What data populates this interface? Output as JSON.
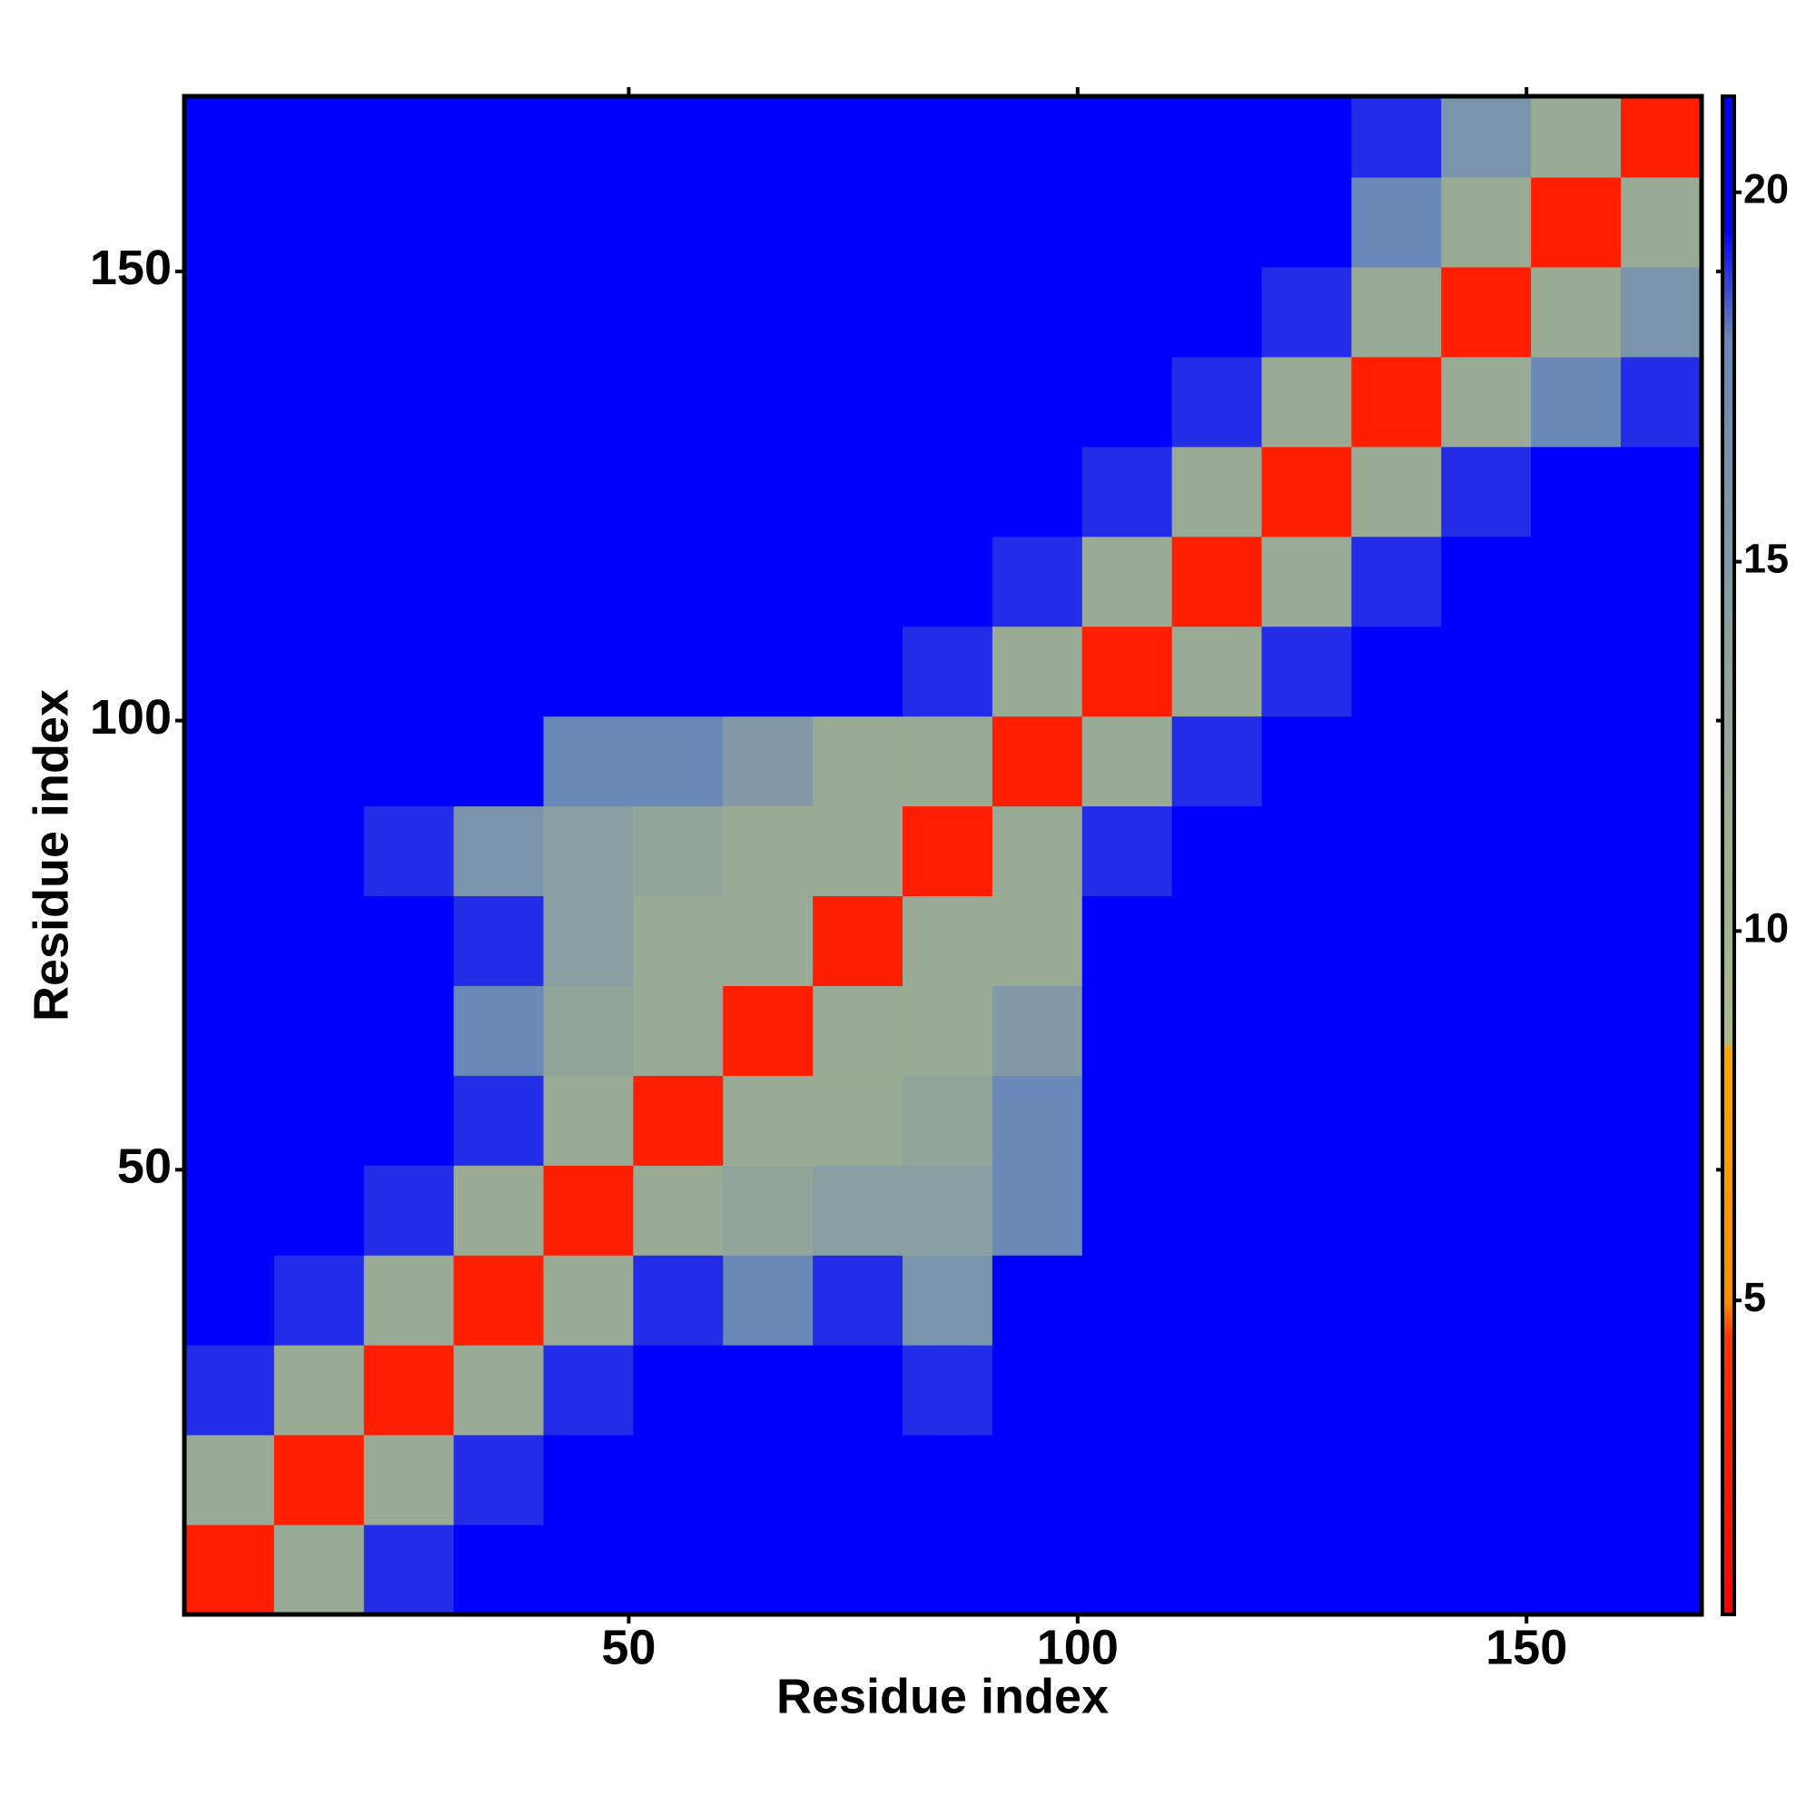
{
  "chart_data": {
    "type": "heatmap",
    "xlabel": "Residue index",
    "ylabel": "Residue index",
    "xlim": [
      0.5,
      169.5
    ],
    "ylim": [
      0.5,
      169.5
    ],
    "xticks": [
      50,
      100,
      150
    ],
    "yticks": [
      50,
      100,
      150
    ],
    "bins": [
      0.5,
      10.5,
      20.5,
      30.5,
      40.5,
      50.5,
      60.5,
      70.5,
      80.5,
      90.5,
      100.5,
      110.5,
      120.5,
      130.5,
      140.5,
      150.5,
      160.5,
      169.5
    ],
    "z": [
      [
        3,
        12,
        19,
        21,
        21,
        21,
        21,
        21,
        21,
        21,
        21,
        21,
        21,
        21,
        21,
        21,
        21
      ],
      [
        12,
        3,
        12,
        19,
        21,
        21,
        21,
        21,
        21,
        21,
        21,
        21,
        21,
        21,
        21,
        21,
        21
      ],
      [
        19,
        12,
        3,
        12,
        19,
        21,
        21,
        21,
        19,
        21,
        21,
        21,
        21,
        21,
        21,
        21,
        21
      ],
      [
        21,
        19,
        12,
        3,
        12,
        19,
        18,
        19,
        16,
        21,
        21,
        21,
        21,
        21,
        21,
        21,
        21
      ],
      [
        21,
        21,
        19,
        12,
        3,
        12,
        13,
        14,
        14,
        18,
        21,
        21,
        21,
        21,
        21,
        21,
        21
      ],
      [
        21,
        21,
        21,
        19,
        12,
        3,
        12,
        12,
        13,
        18,
        21,
        21,
        21,
        21,
        21,
        21,
        21
      ],
      [
        21,
        21,
        21,
        18,
        13,
        12,
        3,
        12,
        12,
        15,
        21,
        21,
        21,
        21,
        21,
        21,
        21
      ],
      [
        21,
        21,
        21,
        19,
        14,
        12,
        12,
        3,
        12,
        12,
        21,
        21,
        21,
        21,
        21,
        21,
        21
      ],
      [
        21,
        21,
        19,
        16,
        14,
        13,
        12,
        12,
        3,
        12,
        19,
        21,
        21,
        21,
        21,
        21,
        21
      ],
      [
        21,
        21,
        21,
        21,
        18,
        18,
        15,
        12,
        12,
        3,
        12,
        19,
        21,
        21,
        21,
        21,
        21
      ],
      [
        21,
        21,
        21,
        21,
        21,
        21,
        21,
        21,
        19,
        12,
        3,
        12,
        19,
        21,
        21,
        21,
        21
      ],
      [
        21,
        21,
        21,
        21,
        21,
        21,
        21,
        21,
        21,
        19,
        12,
        3,
        12,
        19,
        21,
        21,
        21
      ],
      [
        21,
        21,
        21,
        21,
        21,
        21,
        21,
        21,
        21,
        21,
        19,
        12,
        3,
        12,
        19,
        21,
        21
      ],
      [
        21,
        21,
        21,
        21,
        21,
        21,
        21,
        21,
        21,
        21,
        21,
        19,
        12,
        3,
        12,
        18,
        19
      ],
      [
        21,
        21,
        21,
        21,
        21,
        21,
        21,
        21,
        21,
        21,
        21,
        21,
        19,
        12,
        3,
        12,
        16
      ],
      [
        21,
        21,
        21,
        21,
        21,
        21,
        21,
        21,
        21,
        21,
        21,
        21,
        21,
        18,
        12,
        3,
        12
      ],
      [
        21,
        21,
        21,
        21,
        21,
        21,
        21,
        21,
        21,
        21,
        21,
        21,
        21,
        19,
        16,
        12,
        3
      ]
    ],
    "zlim": [
      0.75,
      21.3
    ],
    "zticks": [
      5,
      10,
      15,
      20
    ],
    "colorscale": [
      [
        0.75,
        "#ff0000"
      ],
      [
        4.5,
        "#ff3300"
      ],
      [
        5,
        "#ff8c00"
      ],
      [
        8.4,
        "#ffa500"
      ],
      [
        8.5,
        "#a8bb88"
      ],
      [
        12,
        "#9aab95"
      ],
      [
        18,
        "#6a88b8"
      ],
      [
        19.5,
        "#0000ff"
      ],
      [
        21.3,
        "#0000ff"
      ]
    ]
  }
}
